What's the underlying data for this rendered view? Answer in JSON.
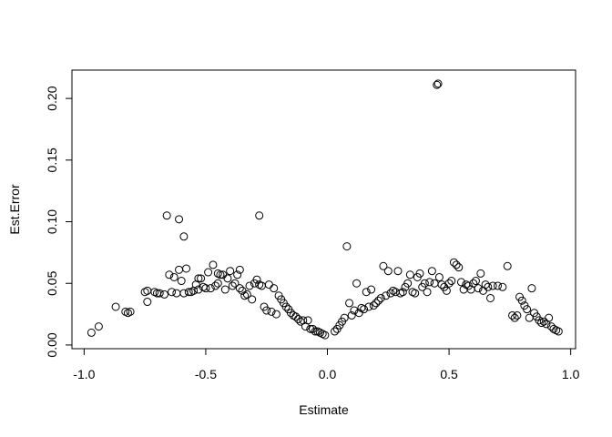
{
  "chart_data": {
    "type": "scatter",
    "title": "",
    "xlabel": "Estimate",
    "ylabel": "Est.Error",
    "xlim": [
      -1.05,
      1.02
    ],
    "ylim": [
      -0.003,
      0.223
    ],
    "xticks": [
      -1.0,
      -0.5,
      0.0,
      0.5,
      1.0
    ],
    "xtick_labels": [
      "-1.0",
      "-0.5",
      "0.0",
      "0.5",
      "1.0"
    ],
    "yticks": [
      0.0,
      0.05,
      0.1,
      0.15,
      0.2
    ],
    "ytick_labels": [
      "0.00",
      "0.05",
      "0.10",
      "0.15",
      "0.20"
    ],
    "grid": false,
    "legend": "none",
    "marker": "open-circle",
    "color": "#000000",
    "points": [
      [
        -0.97,
        0.01
      ],
      [
        -0.94,
        0.015
      ],
      [
        -0.87,
        0.031
      ],
      [
        -0.83,
        0.027
      ],
      [
        -0.81,
        0.027
      ],
      [
        -0.82,
        0.026
      ],
      [
        -0.75,
        0.043
      ],
      [
        -0.74,
        0.044
      ],
      [
        -0.74,
        0.035
      ],
      [
        -0.71,
        0.043
      ],
      [
        -0.7,
        0.042
      ],
      [
        -0.69,
        0.042
      ],
      [
        -0.67,
        0.041
      ],
      [
        -0.66,
        0.105
      ],
      [
        -0.65,
        0.057
      ],
      [
        -0.64,
        0.043
      ],
      [
        -0.63,
        0.055
      ],
      [
        -0.62,
        0.042
      ],
      [
        -0.61,
        0.102
      ],
      [
        -0.61,
        0.061
      ],
      [
        -0.6,
        0.052
      ],
      [
        -0.59,
        0.042
      ],
      [
        -0.59,
        0.088
      ],
      [
        -0.58,
        0.062
      ],
      [
        -0.57,
        0.043
      ],
      [
        -0.56,
        0.043
      ],
      [
        -0.55,
        0.044
      ],
      [
        -0.54,
        0.049
      ],
      [
        -0.53,
        0.054
      ],
      [
        -0.53,
        0.045
      ],
      [
        -0.52,
        0.054
      ],
      [
        -0.51,
        0.047
      ],
      [
        -0.5,
        0.046
      ],
      [
        -0.49,
        0.059
      ],
      [
        -0.48,
        0.046
      ],
      [
        -0.47,
        0.065
      ],
      [
        -0.46,
        0.048
      ],
      [
        -0.45,
        0.05
      ],
      [
        -0.45,
        0.058
      ],
      [
        -0.44,
        0.057
      ],
      [
        -0.43,
        0.057
      ],
      [
        -0.42,
        0.045
      ],
      [
        -0.41,
        0.054
      ],
      [
        -0.4,
        0.06
      ],
      [
        -0.39,
        0.048
      ],
      [
        -0.38,
        0.05
      ],
      [
        -0.37,
        0.057
      ],
      [
        -0.36,
        0.061
      ],
      [
        -0.36,
        0.046
      ],
      [
        -0.35,
        0.044
      ],
      [
        -0.34,
        0.04
      ],
      [
        -0.33,
        0.041
      ],
      [
        -0.32,
        0.048
      ],
      [
        -0.31,
        0.037
      ],
      [
        -0.3,
        0.05
      ],
      [
        -0.29,
        0.053
      ],
      [
        -0.28,
        0.105
      ],
      [
        -0.28,
        0.049
      ],
      [
        -0.27,
        0.048
      ],
      [
        -0.26,
        0.031
      ],
      [
        -0.25,
        0.028
      ],
      [
        -0.24,
        0.049
      ],
      [
        -0.23,
        0.027
      ],
      [
        -0.22,
        0.046
      ],
      [
        -0.21,
        0.025
      ],
      [
        -0.2,
        0.04
      ],
      [
        -0.19,
        0.037
      ],
      [
        -0.18,
        0.034
      ],
      [
        -0.17,
        0.031
      ],
      [
        -0.16,
        0.029
      ],
      [
        -0.15,
        0.026
      ],
      [
        -0.14,
        0.024
      ],
      [
        -0.13,
        0.023
      ],
      [
        -0.12,
        0.021
      ],
      [
        -0.11,
        0.019
      ],
      [
        -0.1,
        0.02
      ],
      [
        -0.09,
        0.015
      ],
      [
        -0.08,
        0.02
      ],
      [
        -0.07,
        0.013
      ],
      [
        -0.06,
        0.013
      ],
      [
        -0.05,
        0.011
      ],
      [
        -0.04,
        0.011
      ],
      [
        -0.03,
        0.01
      ],
      [
        -0.02,
        0.009
      ],
      [
        -0.01,
        0.008
      ],
      [
        0.03,
        0.011
      ],
      [
        0.04,
        0.013
      ],
      [
        0.05,
        0.016
      ],
      [
        0.06,
        0.019
      ],
      [
        0.07,
        0.022
      ],
      [
        0.08,
        0.08
      ],
      [
        0.09,
        0.034
      ],
      [
        0.1,
        0.024
      ],
      [
        0.11,
        0.028
      ],
      [
        0.12,
        0.05
      ],
      [
        0.13,
        0.026
      ],
      [
        0.14,
        0.03
      ],
      [
        0.15,
        0.029
      ],
      [
        0.16,
        0.043
      ],
      [
        0.17,
        0.031
      ],
      [
        0.18,
        0.045
      ],
      [
        0.19,
        0.032
      ],
      [
        0.2,
        0.034
      ],
      [
        0.21,
        0.036
      ],
      [
        0.22,
        0.038
      ],
      [
        0.23,
        0.064
      ],
      [
        0.24,
        0.04
      ],
      [
        0.25,
        0.06
      ],
      [
        0.26,
        0.042
      ],
      [
        0.27,
        0.044
      ],
      [
        0.28,
        0.043
      ],
      [
        0.29,
        0.06
      ],
      [
        0.3,
        0.042
      ],
      [
        0.31,
        0.043
      ],
      [
        0.32,
        0.047
      ],
      [
        0.33,
        0.05
      ],
      [
        0.34,
        0.057
      ],
      [
        0.35,
        0.043
      ],
      [
        0.36,
        0.042
      ],
      [
        0.37,
        0.055
      ],
      [
        0.38,
        0.058
      ],
      [
        0.39,
        0.047
      ],
      [
        0.4,
        0.05
      ],
      [
        0.41,
        0.043
      ],
      [
        0.42,
        0.051
      ],
      [
        0.43,
        0.06
      ],
      [
        0.44,
        0.05
      ],
      [
        0.45,
        0.211
      ],
      [
        0.455,
        0.212
      ],
      [
        0.46,
        0.055
      ],
      [
        0.47,
        0.049
      ],
      [
        0.48,
        0.047
      ],
      [
        0.49,
        0.044
      ],
      [
        0.5,
        0.05
      ],
      [
        0.51,
        0.052
      ],
      [
        0.52,
        0.067
      ],
      [
        0.53,
        0.065
      ],
      [
        0.54,
        0.063
      ],
      [
        0.55,
        0.051
      ],
      [
        0.56,
        0.045
      ],
      [
        0.57,
        0.049
      ],
      [
        0.58,
        0.048
      ],
      [
        0.59,
        0.045
      ],
      [
        0.6,
        0.05
      ],
      [
        0.61,
        0.052
      ],
      [
        0.62,
        0.046
      ],
      [
        0.63,
        0.058
      ],
      [
        0.64,
        0.044
      ],
      [
        0.65,
        0.049
      ],
      [
        0.66,
        0.047
      ],
      [
        0.67,
        0.038
      ],
      [
        0.68,
        0.048
      ],
      [
        0.7,
        0.048
      ],
      [
        0.72,
        0.047
      ],
      [
        0.74,
        0.064
      ],
      [
        0.76,
        0.024
      ],
      [
        0.77,
        0.022
      ],
      [
        0.78,
        0.024
      ],
      [
        0.79,
        0.039
      ],
      [
        0.8,
        0.036
      ],
      [
        0.81,
        0.032
      ],
      [
        0.82,
        0.029
      ],
      [
        0.83,
        0.022
      ],
      [
        0.84,
        0.046
      ],
      [
        0.85,
        0.026
      ],
      [
        0.86,
        0.023
      ],
      [
        0.87,
        0.02
      ],
      [
        0.88,
        0.018
      ],
      [
        0.89,
        0.019
      ],
      [
        0.9,
        0.017
      ],
      [
        0.91,
        0.022
      ],
      [
        0.92,
        0.015
      ],
      [
        0.93,
        0.013
      ],
      [
        0.94,
        0.012
      ],
      [
        0.95,
        0.011
      ]
    ]
  }
}
